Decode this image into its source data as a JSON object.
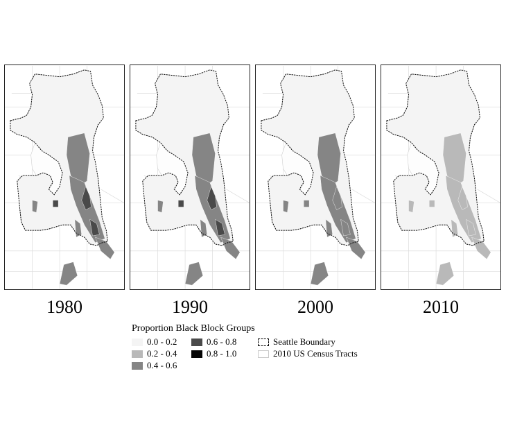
{
  "panels": [
    {
      "year": "1980",
      "level": 4
    },
    {
      "year": "1990",
      "level": 3
    },
    {
      "year": "2000",
      "level": 2
    },
    {
      "year": "2010",
      "level": 1
    }
  ],
  "legend": {
    "title": "Proportion Black Block Groups",
    "classes": [
      {
        "label": "0.0 - 0.2",
        "color": "#f4f4f4"
      },
      {
        "label": "0.2 - 0.4",
        "color": "#b9b9b9"
      },
      {
        "label": "0.4 - 0.6",
        "color": "#858585"
      },
      {
        "label": "0.6 - 0.8",
        "color": "#4a4a4a"
      },
      {
        "label": "0.8 - 1.0",
        "color": "#050505"
      }
    ],
    "boundary_label": "Seattle Boundary",
    "tracts_label": "2010 US Census Tracts"
  }
}
